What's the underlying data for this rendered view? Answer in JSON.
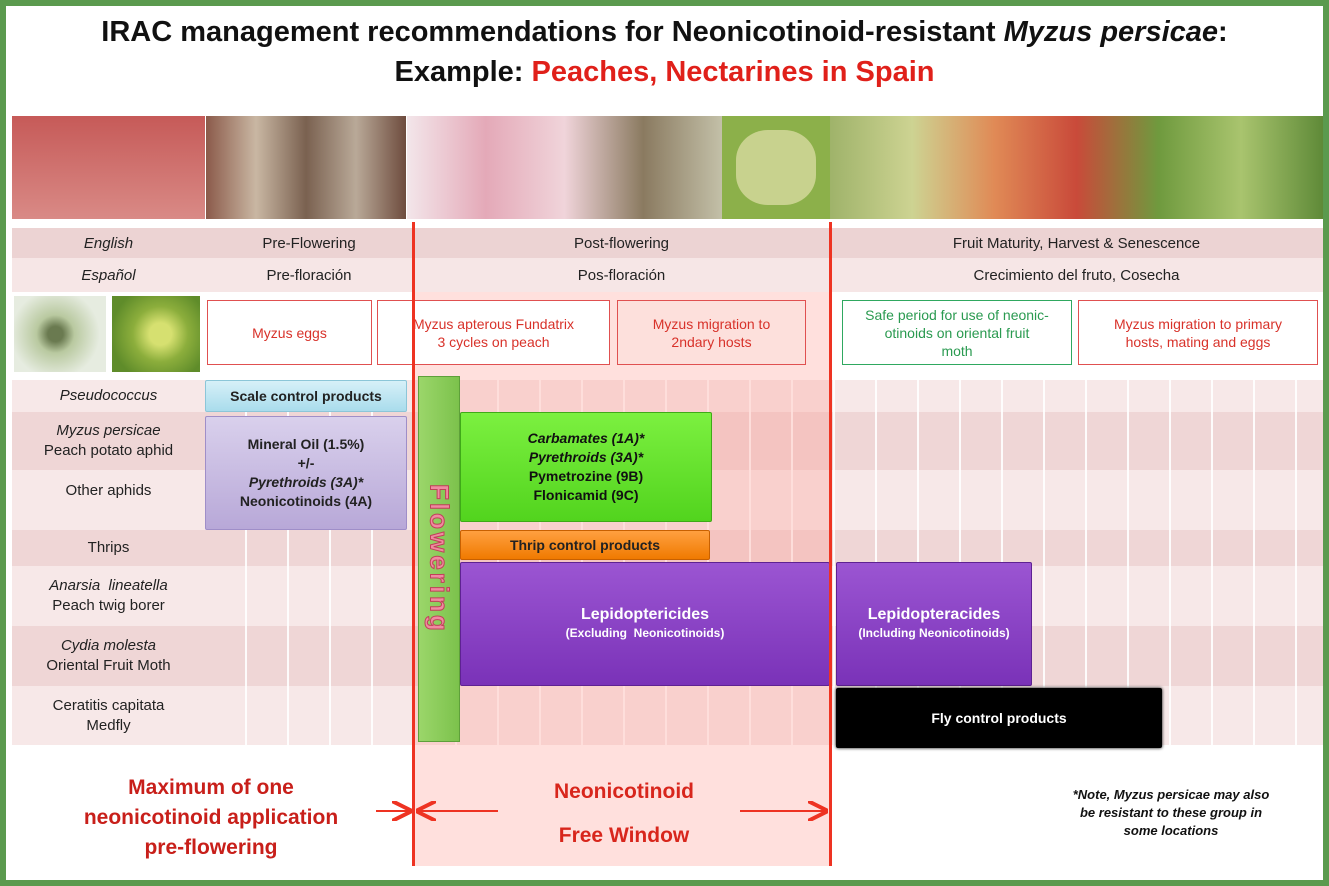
{
  "title": {
    "line1": "IRAC management recommendations for Neonicotinoid-resistant ",
    "line1_italic": "Myzus persicae",
    "line1_end": ":",
    "line2": "Example: ",
    "line2_highlight": "Peaches, Nectarines in Spain"
  },
  "stage_rows": [
    {
      "label": "English",
      "stages": [
        "Pre-Flowering",
        "Post-flowering",
        "Fruit Maturity, Harvest & Senescence"
      ]
    },
    {
      "label": "Español",
      "stages": [
        "Pre-floración",
        "Pos-floración",
        "Crecimiento del fruto, Cosecha"
      ]
    }
  ],
  "lifecycle_boxes": [
    {
      "lines": [
        "Myzus eggs"
      ]
    },
    {
      "lines": [
        "Myzus apterous Fundatrix",
        "3 cycles on peach"
      ]
    },
    {
      "lines": [
        "Myzus migration to",
        "2ndary hosts"
      ]
    },
    {
      "lines": [
        "Safe period for use of neonic-",
        "otinoids on oriental fruit",
        "moth"
      ]
    },
    {
      "lines": [
        "Myzus migration to primary",
        "hosts, mating and eggs"
      ]
    }
  ],
  "pests": [
    {
      "lines": [
        "Pseudococcus"
      ]
    },
    {
      "lines": [
        "Myzus persicae",
        "Peach potato aphid"
      ]
    },
    {
      "lines": [
        "Other aphids"
      ]
    },
    {
      "lines": [
        "Thrips"
      ]
    },
    {
      "lines": [
        "Anarsia  lineatella",
        "Peach twig borer"
      ]
    },
    {
      "lines": [
        "Cydia molesta",
        "Oriental Fruit Moth"
      ]
    },
    {
      "lines": [
        "Ceratitis capitata",
        "Medfly"
      ]
    }
  ],
  "treatments": [
    {
      "lines": [
        "Scale control products"
      ]
    },
    {
      "lines": [
        "Mineral Oil (1.5%)",
        "+/-",
        "Pyrethroids (3A)*",
        "Neonicotinoids (4A)"
      ]
    },
    {
      "lines": [
        "Carbamates (1A)*",
        "Pyrethroids (3A)*",
        "Pymetrozine (9B)",
        "Flonicamid (9C)"
      ]
    },
    {
      "lines": [
        "Thrip control products"
      ]
    },
    {
      "lines": [
        "Lepidoptericides",
        "(Excluding  Neonicotinoids)"
      ]
    },
    {
      "lines": [
        "Lepidopteracides",
        "(Including Neonicotinoids)"
      ]
    },
    {
      "lines": [
        "Fly control products"
      ]
    }
  ],
  "flowering": "Flowering",
  "footer": {
    "pre_flowering": [
      "Maximum of one",
      "neonicotinoid application",
      "pre-flowering"
    ],
    "window": [
      "Neonicotinoid",
      "Free Window"
    ],
    "note": [
      "*Note, Myzus persicae may also",
      "be resistant to these group in",
      "some locations"
    ]
  }
}
